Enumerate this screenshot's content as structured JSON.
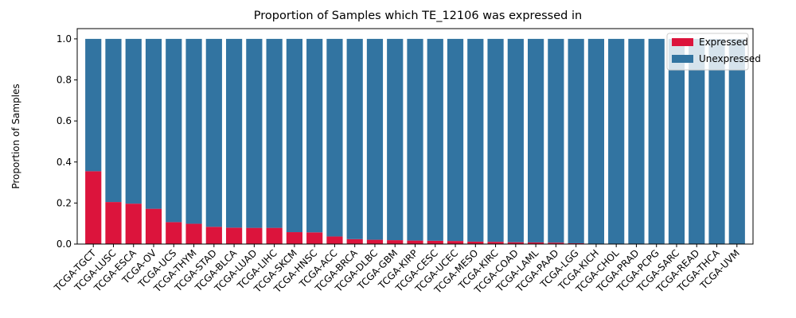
{
  "chart_data": {
    "type": "bar",
    "stacked": true,
    "title": "Proportion of Samples which TE_12106 was expressed in",
    "xlabel": "",
    "ylabel": "Proportion of Samples",
    "ylim": [
      0,
      1.05
    ],
    "yticks": [
      "0.0",
      "0.2",
      "0.4",
      "0.6",
      "0.8",
      "1.0"
    ],
    "grid": false,
    "legend_position": "top-right",
    "categories": [
      "TCGA-TGCT",
      "TCGA-LUSC",
      "TCGA-ESCA",
      "TCGA-OV",
      "TCGA-UCS",
      "TCGA-THYM",
      "TCGA-STAD",
      "TCGA-BLCA",
      "TCGA-LUAD",
      "TCGA-LIHC",
      "TCGA-SKCM",
      "TCGA-HNSC",
      "TCGA-ACC",
      "TCGA-BRCA",
      "TCGA-DLBC",
      "TCGA-GBM",
      "TCGA-KIRP",
      "TCGA-CESC",
      "TCGA-UCEC",
      "TCGA-MESO",
      "TCGA-KIRC",
      "TCGA-COAD",
      "TCGA-LAML",
      "TCGA-PAAD",
      "TCGA-LGG",
      "TCGA-KICH",
      "TCGA-CHOL",
      "TCGA-PRAD",
      "TCGA-PCPG",
      "TCGA-SARC",
      "TCGA-READ",
      "TCGA-THCA",
      "TCGA-UVM"
    ],
    "series": [
      {
        "name": "Expressed",
        "color": "#dc143c",
        "values": [
          0.355,
          0.205,
          0.197,
          0.172,
          0.107,
          0.099,
          0.084,
          0.08,
          0.079,
          0.079,
          0.058,
          0.057,
          0.037,
          0.024,
          0.021,
          0.019,
          0.017,
          0.016,
          0.015,
          0.012,
          0.011,
          0.009,
          0.008,
          0.007,
          0.004,
          0,
          0,
          0,
          0,
          0,
          0,
          0,
          0
        ]
      },
      {
        "name": "Unexpressed",
        "color": "#3274a1",
        "values": [
          0.645,
          0.795,
          0.803,
          0.828,
          0.893,
          0.901,
          0.916,
          0.92,
          0.921,
          0.921,
          0.942,
          0.943,
          0.963,
          0.976,
          0.979,
          0.981,
          0.983,
          0.984,
          0.985,
          0.988,
          0.989,
          0.991,
          0.992,
          0.993,
          0.996,
          1,
          1,
          1,
          1,
          1,
          1,
          1,
          1
        ]
      }
    ]
  }
}
